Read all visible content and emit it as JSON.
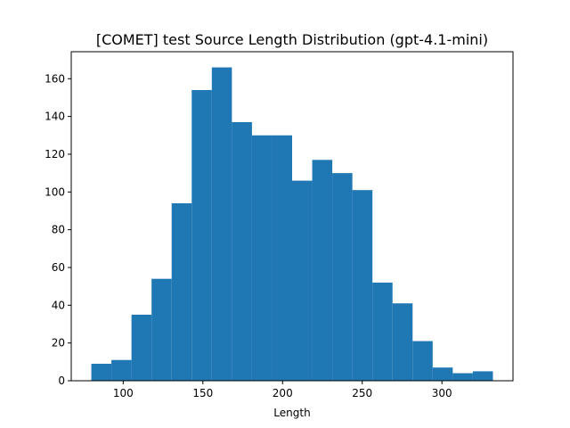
{
  "chart_data": {
    "type": "bar",
    "title": "[COMET] test Source Length Distribution (gpt-4.1-mini)",
    "xlabel": "Length",
    "ylabel": "",
    "bins": [
      {
        "x0": 80.0,
        "x1": 92.6,
        "count": 9
      },
      {
        "x0": 92.6,
        "x1": 105.2,
        "count": 11
      },
      {
        "x0": 105.2,
        "x1": 117.8,
        "count": 35
      },
      {
        "x0": 117.8,
        "x1": 130.4,
        "count": 54
      },
      {
        "x0": 130.4,
        "x1": 143.0,
        "count": 94
      },
      {
        "x0": 143.0,
        "x1": 155.6,
        "count": 154
      },
      {
        "x0": 155.6,
        "x1": 168.2,
        "count": 166
      },
      {
        "x0": 168.2,
        "x1": 180.8,
        "count": 137
      },
      {
        "x0": 180.8,
        "x1": 193.4,
        "count": 130
      },
      {
        "x0": 193.4,
        "x1": 206.0,
        "count": 130
      },
      {
        "x0": 206.0,
        "x1": 218.6,
        "count": 106
      },
      {
        "x0": 218.6,
        "x1": 231.2,
        "count": 117
      },
      {
        "x0": 231.2,
        "x1": 243.8,
        "count": 110
      },
      {
        "x0": 243.8,
        "x1": 256.4,
        "count": 101
      },
      {
        "x0": 256.4,
        "x1": 269.0,
        "count": 52
      },
      {
        "x0": 269.0,
        "x1": 281.6,
        "count": 41
      },
      {
        "x0": 281.6,
        "x1": 294.2,
        "count": 21
      },
      {
        "x0": 294.2,
        "x1": 306.8,
        "count": 7
      },
      {
        "x0": 306.8,
        "x1": 319.4,
        "count": 4
      },
      {
        "x0": 319.4,
        "x1": 332.0,
        "count": 5
      }
    ],
    "xlim": [
      67.4,
      344.6
    ],
    "ylim": [
      0,
      174.3
    ],
    "xticks": [
      100,
      150,
      200,
      250,
      300
    ],
    "yticks": [
      0,
      20,
      40,
      60,
      80,
      100,
      120,
      140,
      160
    ],
    "bar_color": "#1f77b4",
    "grid": false,
    "legend": "none"
  }
}
